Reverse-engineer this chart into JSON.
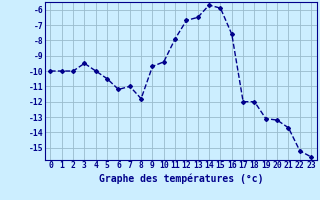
{
  "x": [
    0,
    1,
    2,
    3,
    4,
    5,
    6,
    7,
    8,
    9,
    10,
    11,
    12,
    13,
    14,
    15,
    16,
    17,
    18,
    19,
    20,
    21,
    22,
    23
  ],
  "y": [
    -10.0,
    -10.0,
    -10.0,
    -9.5,
    -10.0,
    -10.5,
    -11.2,
    -11.0,
    -11.8,
    -9.7,
    -9.4,
    -7.9,
    -6.7,
    -6.5,
    -5.7,
    -5.9,
    -7.6,
    -12.0,
    -12.0,
    -13.1,
    -13.2,
    -13.7,
    -15.2,
    -15.6
  ],
  "line_color": "#00008b",
  "marker": "D",
  "markersize": 2.0,
  "linewidth": 1.0,
  "xlabel": "Graphe des températures (°c)",
  "ylabel": "",
  "xlim": [
    -0.5,
    23.5
  ],
  "ylim": [
    -15.8,
    -5.5
  ],
  "yticks": [
    -6,
    -7,
    -8,
    -9,
    -10,
    -11,
    -12,
    -13,
    -14,
    -15
  ],
  "xticks": [
    0,
    1,
    2,
    3,
    4,
    5,
    6,
    7,
    8,
    9,
    10,
    11,
    12,
    13,
    14,
    15,
    16,
    17,
    18,
    19,
    20,
    21,
    22,
    23
  ],
  "bg_color": "#cceeff",
  "grid_color": "#99bbcc",
  "tick_color": "#00008b",
  "label_color": "#00008b",
  "xlabel_fontsize": 7.0,
  "tick_fontsize": 5.8
}
